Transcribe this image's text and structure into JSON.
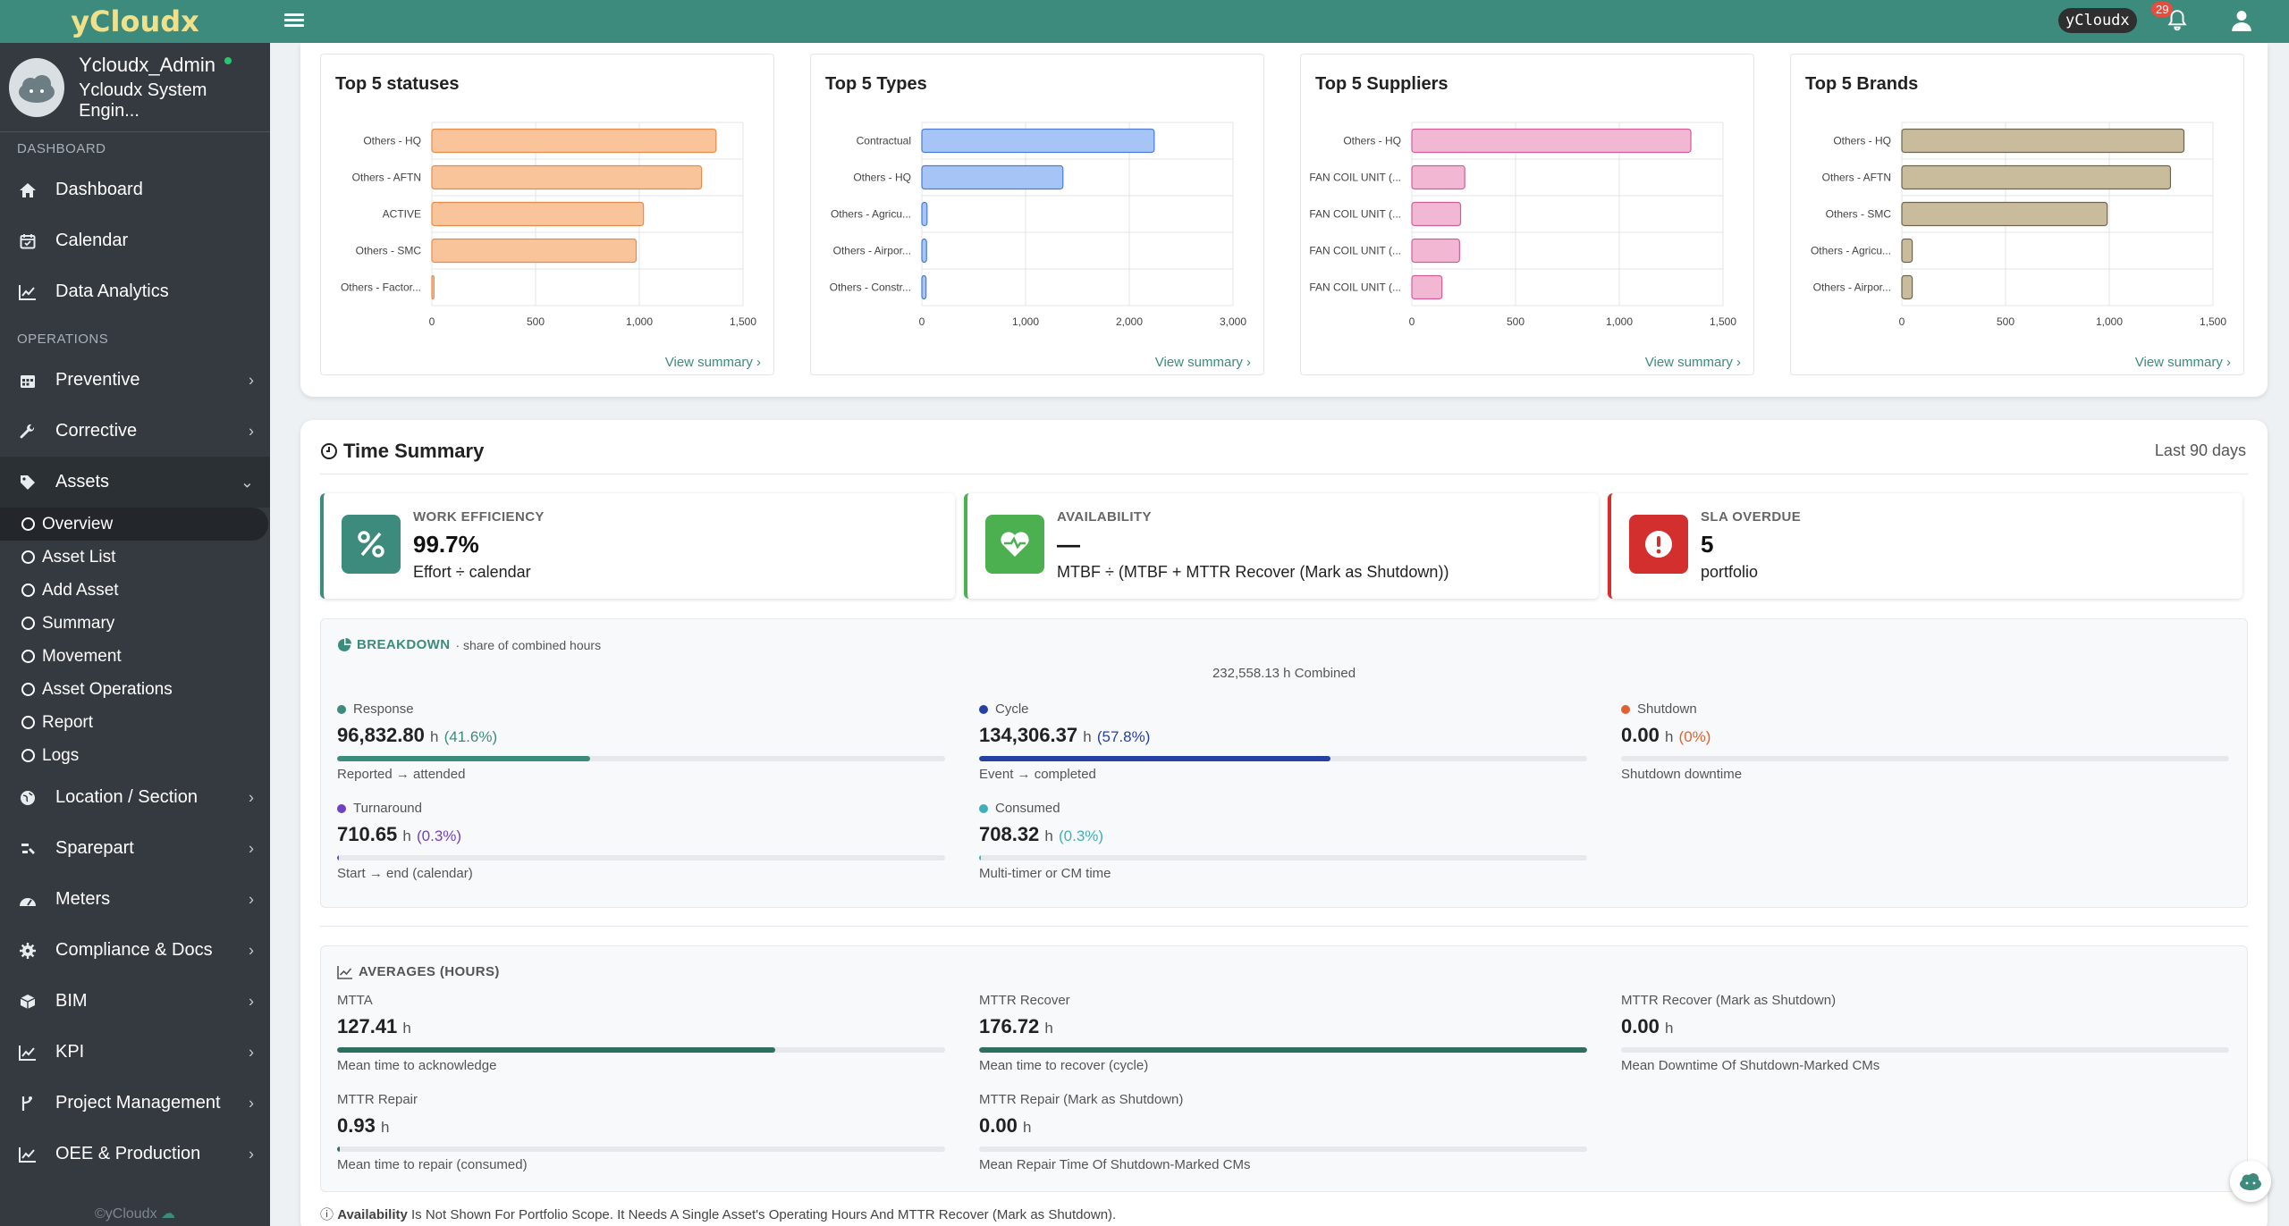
{
  "app": {
    "brand": "yCloudx",
    "footer": "©yCloudx"
  },
  "user": {
    "name": "Ycloudx_Admin",
    "role": "Ycloudx System Engin..."
  },
  "sidebar": {
    "section_dashboard": "DASHBOARD",
    "section_operations": "OPERATIONS",
    "items": [
      {
        "label": "Dashboard",
        "icon": "home-icon"
      },
      {
        "label": "Calendar",
        "icon": "calendar-icon"
      },
      {
        "label": "Data Analytics",
        "icon": "line-chart-icon"
      },
      {
        "label": "Preventive",
        "icon": "calendar-grid-icon"
      },
      {
        "label": "Corrective",
        "icon": "wrench-icon"
      },
      {
        "label": "Assets",
        "icon": "tag-icon"
      },
      {
        "label": "Location / Section",
        "icon": "globe-icon"
      },
      {
        "label": "Sparepart",
        "icon": "parts-icon"
      },
      {
        "label": "Meters",
        "icon": "gauge-icon"
      },
      {
        "label": "Compliance & Docs",
        "icon": "gear-icon"
      },
      {
        "label": "BIM",
        "icon": "cube-icon"
      },
      {
        "label": "KPI",
        "icon": "kpi-chart-icon"
      },
      {
        "label": "Project Management",
        "icon": "branch-icon"
      },
      {
        "label": "OEE & Production",
        "icon": "production-chart-icon"
      }
    ],
    "asset_sub": [
      "Overview",
      "Asset List",
      "Add Asset",
      "Summary",
      "Movement",
      "Asset Operations",
      "Report",
      "Logs"
    ]
  },
  "topbar": {
    "chip": "yCloudx",
    "notifications": "29"
  },
  "charts_common": {
    "view_summary": "View summary ›"
  },
  "chart_data": [
    {
      "type": "bar",
      "orientation": "horizontal",
      "title": "Top 5 statuses",
      "categories": [
        "Others - HQ",
        "Others - AFTN",
        "ACTIVE",
        "Others - SMC",
        "Others - Factor..."
      ],
      "values": [
        1370,
        1300,
        1020,
        985,
        10
      ],
      "xlim": [
        0,
        1500
      ],
      "ticks": [
        "0",
        "500",
        "1,000",
        "1,500"
      ],
      "tick_values": [
        0,
        500,
        1000,
        1500
      ],
      "color": "#f9c49a",
      "stroke": "#e88a49"
    },
    {
      "type": "bar",
      "orientation": "horizontal",
      "title": "Top 5 Types",
      "categories": [
        "Contractual",
        "Others - HQ",
        "Others - Agricu...",
        "Others - Airpor...",
        "Others - Constr..."
      ],
      "values": [
        2240,
        1360,
        50,
        45,
        40
      ],
      "xlim": [
        0,
        3000
      ],
      "ticks": [
        "0",
        "1,000",
        "2,000",
        "3,000"
      ],
      "tick_values": [
        0,
        1000,
        2000,
        3000
      ],
      "color": "#a7c4f7",
      "stroke": "#4a7bd6"
    },
    {
      "type": "bar",
      "orientation": "horizontal",
      "title": "Top 5 Suppliers",
      "categories": [
        "Others - HQ",
        "FAN COIL UNIT (...",
        "FAN COIL UNIT (...",
        "FAN COIL UNIT (...",
        "FAN COIL UNIT (..."
      ],
      "values": [
        1345,
        255,
        235,
        230,
        145
      ],
      "xlim": [
        0,
        1500
      ],
      "ticks": [
        "0",
        "500",
        "1,000",
        "1,500"
      ],
      "tick_values": [
        0,
        500,
        1000,
        1500
      ],
      "color": "#f1b7d3",
      "stroke": "#d25e98"
    },
    {
      "type": "bar",
      "orientation": "horizontal",
      "title": "Top 5 Brands",
      "categories": [
        "Others - HQ",
        "Others - AFTN",
        "Others - SMC",
        "Others - Agricu...",
        "Others - Airpor..."
      ],
      "values": [
        1360,
        1295,
        990,
        50,
        50
      ],
      "xlim": [
        0,
        1500
      ],
      "ticks": [
        "0",
        "500",
        "1,000",
        "1,500"
      ],
      "tick_values": [
        0,
        500,
        1000,
        1500
      ],
      "color": "#c8bc9c",
      "stroke": "#6d6550"
    }
  ],
  "time_summary": {
    "title": "Time Summary",
    "range": "Last 90 days",
    "kpis": [
      {
        "label": "WORK EFFICIENCY",
        "value": "99.7%",
        "sub": "Effort ÷ calendar",
        "color": "#3c8b7c",
        "icon": "percent-icon"
      },
      {
        "label": "AVAILABILITY",
        "value": "—",
        "sub": "MTBF ÷ (MTBF + MTTR Recover (Mark as Shutdown))",
        "color": "#4caf50",
        "icon": "heart-pulse-icon"
      },
      {
        "label": "SLA OVERDUE",
        "value": "5",
        "sub": "portfolio",
        "color": "#d32f2f",
        "icon": "alert-icon"
      }
    ],
    "breakdown": {
      "title": "BREAKDOWN",
      "subtitle": "· share of combined hours",
      "combined": "232,558.13 h Combined",
      "items": [
        {
          "label": "Response",
          "value": "96,832.80",
          "unit": "h",
          "pct": "(41.6%)",
          "desc": "Reported → attended",
          "dot": "#3c8b7c",
          "fill": 0.416,
          "pct_color": "#3c8b7c"
        },
        {
          "label": "Cycle",
          "value": "134,306.37",
          "unit": "h",
          "pct": "(57.8%)",
          "desc": "Event → completed",
          "dot": "#2541a3",
          "fill": 0.578,
          "pct_color": "#2541a3"
        },
        {
          "label": "Shutdown",
          "value": "0.00",
          "unit": "h",
          "pct": "(0%)",
          "desc": "Shutdown downtime",
          "dot": "#e0612f",
          "fill": 0,
          "pct_color": "#e0612f"
        },
        {
          "label": "Turnaround",
          "value": "710.65",
          "unit": "h",
          "pct": "(0.3%)",
          "desc": "Start → end (calendar)",
          "dot": "#6f42c1",
          "fill": 0.003,
          "pct_color": "#6f42c1"
        },
        {
          "label": "Consumed",
          "value": "708.32",
          "unit": "h",
          "pct": "(0.3%)",
          "desc": "Multi-timer or CM time",
          "dot": "#3fb0b9",
          "fill": 0.003,
          "pct_color": "#3fb0b9"
        }
      ]
    },
    "averages": {
      "title": "AVERAGES (HOURS)",
      "items": [
        {
          "label": "MTTA",
          "value": "127.41",
          "unit": "h",
          "desc": "Mean time to acknowledge",
          "fill": 0.72
        },
        {
          "label": "MTTR Recover",
          "value": "176.72",
          "unit": "h",
          "desc": "Mean time to recover (cycle)",
          "fill": 1.0
        },
        {
          "label": "MTTR Recover (Mark as Shutdown)",
          "value": "0.00",
          "unit": "h",
          "desc": "Mean Downtime Of Shutdown-Marked CMs",
          "fill": 0
        },
        {
          "label": "MTTR Repair",
          "value": "0.93",
          "unit": "h",
          "desc": "Mean time to repair (consumed)",
          "fill": 0.005
        },
        {
          "label": "MTTR Repair (Mark as Shutdown)",
          "value": "0.00",
          "unit": "h",
          "desc": "Mean Repair Time Of Shutdown-Marked CMs",
          "fill": 0
        }
      ]
    },
    "note_bold": "Availability",
    "note_text": " Is Not Shown For Portfolio Scope. It Needs A Single Asset's Operating Hours And MTTR Recover (Mark as Shutdown)."
  }
}
